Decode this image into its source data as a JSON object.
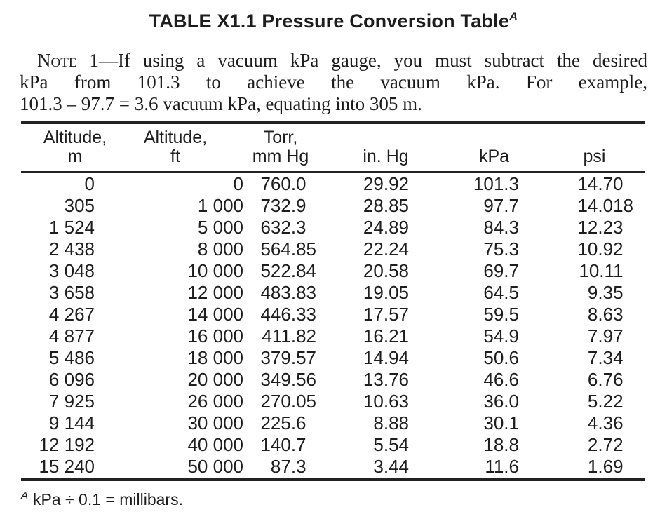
{
  "page": {
    "background_color": "#ffffff",
    "text_color": "#1d1d1d"
  },
  "title": {
    "text": "TABLE X1.1 Pressure Conversion Table",
    "superscript": "A"
  },
  "note": {
    "label": "Note 1",
    "line1_rest": "—If using a vacuum kPa gauge, you must subtract the desired",
    "line2": "kPa from 101.3 to achieve the vacuum kPa. For example,",
    "line3": "101.3 – 97.7 = 3.6 vacuum kPa, equating into 305 m."
  },
  "table": {
    "columns": [
      {
        "line1": "Altitude,",
        "line2": "m"
      },
      {
        "line1": "Altitude,",
        "line2": "ft"
      },
      {
        "line1": "Torr,",
        "line2": "mm Hg"
      },
      {
        "line1": "",
        "line2": "in. Hg"
      },
      {
        "line1": "",
        "line2": "kPa"
      },
      {
        "line1": "",
        "line2": "psi"
      }
    ],
    "rows": [
      [
        "0",
        "0",
        "760.0",
        "29.92",
        "101.3",
        "14.70"
      ],
      [
        "305",
        "1 000",
        "732.9",
        "28.85",
        "97.7",
        "14.018"
      ],
      [
        "1 524",
        "5 000",
        "632.3",
        "24.89",
        "84.3",
        "12.23"
      ],
      [
        "2 438",
        "8 000",
        "564.85",
        "22.24",
        "75.3",
        "10.92"
      ],
      [
        "3 048",
        "10 000",
        "522.84",
        "20.58",
        "69.7",
        "10.11"
      ],
      [
        "3 658",
        "12 000",
        "483.83",
        "19.05",
        "64.5",
        "9.35"
      ],
      [
        "4 267",
        "14 000",
        "446.33",
        "17.57",
        "59.5",
        "8.63"
      ],
      [
        "4 877",
        "16 000",
        "411.82",
        "16.21",
        "54.9",
        "7.97"
      ],
      [
        "5 486",
        "18 000",
        "379.57",
        "14.94",
        "50.6",
        "7.34"
      ],
      [
        "6 096",
        "20 000",
        "349.56",
        "13.76",
        "46.6",
        "6.76"
      ],
      [
        "7 925",
        "26 000",
        "270.05",
        "10.63",
        "36.0",
        "5.22"
      ],
      [
        "9 144",
        "30 000",
        "225.6",
        "8.88",
        "30.1",
        "4.36"
      ],
      [
        "12 192",
        "40 000",
        "140.7",
        "5.54",
        "18.8",
        "2.72"
      ],
      [
        "15 240",
        "50 000",
        "87.3",
        "3.44",
        "11.6",
        "1.69"
      ]
    ]
  },
  "footnote": {
    "superscript": "A",
    "text": "kPa ÷ 0.1 = millibars."
  }
}
